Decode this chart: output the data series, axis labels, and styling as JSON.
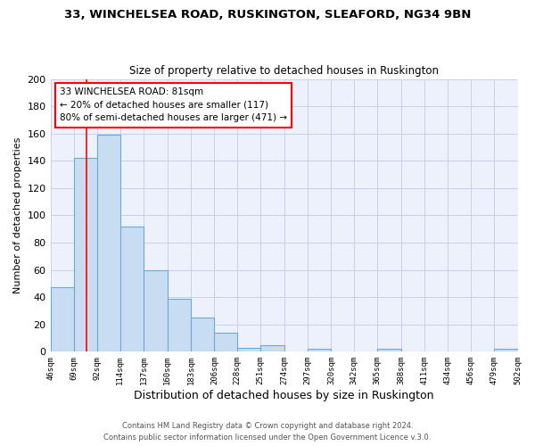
{
  "title1": "33, WINCHELSEA ROAD, RUSKINGTON, SLEAFORD, NG34 9BN",
  "title2": "Size of property relative to detached houses in Ruskington",
  "xlabel": "Distribution of detached houses by size in Ruskington",
  "ylabel": "Number of detached properties",
  "bin_edges": [
    46,
    69,
    92,
    114,
    137,
    160,
    183,
    206,
    228,
    251,
    274,
    297,
    320,
    342,
    365,
    388,
    411,
    434,
    456,
    479,
    502
  ],
  "bin_counts": [
    47,
    142,
    159,
    92,
    60,
    39,
    25,
    14,
    3,
    5,
    0,
    2,
    0,
    0,
    2,
    0,
    0,
    0,
    0,
    2
  ],
  "bar_color": "#c9ddf2",
  "bar_edge_color": "#6aaad4",
  "reference_line_x": 81,
  "ylim": [
    0,
    200
  ],
  "yticks": [
    0,
    20,
    40,
    60,
    80,
    100,
    120,
    140,
    160,
    180,
    200
  ],
  "annotation_line1": "33 WINCHELSEA ROAD: 81sqm",
  "annotation_line2": "← 20% of detached houses are smaller (117)",
  "annotation_line3": "80% of semi-detached houses are larger (471) →",
  "footer1": "Contains HM Land Registry data © Crown copyright and database right 2024.",
  "footer2": "Contains public sector information licensed under the Open Government Licence v.3.0.",
  "background_color": "#edf1fb",
  "grid_color": "#c8d0e8",
  "white_bg": "#ffffff"
}
